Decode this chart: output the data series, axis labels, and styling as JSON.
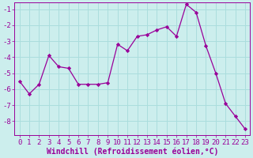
{
  "x": [
    0,
    1,
    2,
    3,
    4,
    5,
    6,
    7,
    8,
    9,
    10,
    11,
    12,
    13,
    14,
    15,
    16,
    17,
    18,
    19,
    20,
    21,
    22,
    23
  ],
  "y": [
    -5.5,
    -6.3,
    -5.7,
    -3.9,
    -4.6,
    -4.7,
    -5.7,
    -5.7,
    -5.7,
    -5.6,
    -3.2,
    -3.6,
    -2.7,
    -2.6,
    -2.3,
    -2.1,
    -2.7,
    -0.7,
    -1.2,
    -3.3,
    -5.0,
    -6.9,
    -7.7,
    -8.5
  ],
  "line_color": "#990099",
  "marker": "D",
  "marker_size": 2.2,
  "bg_color": "#cceeed",
  "grid_color": "#aadddd",
  "axis_color": "#990099",
  "tick_color": "#990099",
  "xlabel": "Windchill (Refroidissement éolien,°C)",
  "xlabel_color": "#990099",
  "ylim": [
    -8.9,
    -0.6
  ],
  "xlim": [
    -0.5,
    23.5
  ],
  "yticks": [
    -8,
    -7,
    -6,
    -5,
    -4,
    -3,
    -2,
    -1
  ],
  "xticks": [
    0,
    1,
    2,
    3,
    4,
    5,
    6,
    7,
    8,
    9,
    10,
    11,
    12,
    13,
    14,
    15,
    16,
    17,
    18,
    19,
    20,
    21,
    22,
    23
  ],
  "tick_fontsize": 6.5,
  "xlabel_fontsize": 7.0,
  "xlabel_fontweight": "bold"
}
